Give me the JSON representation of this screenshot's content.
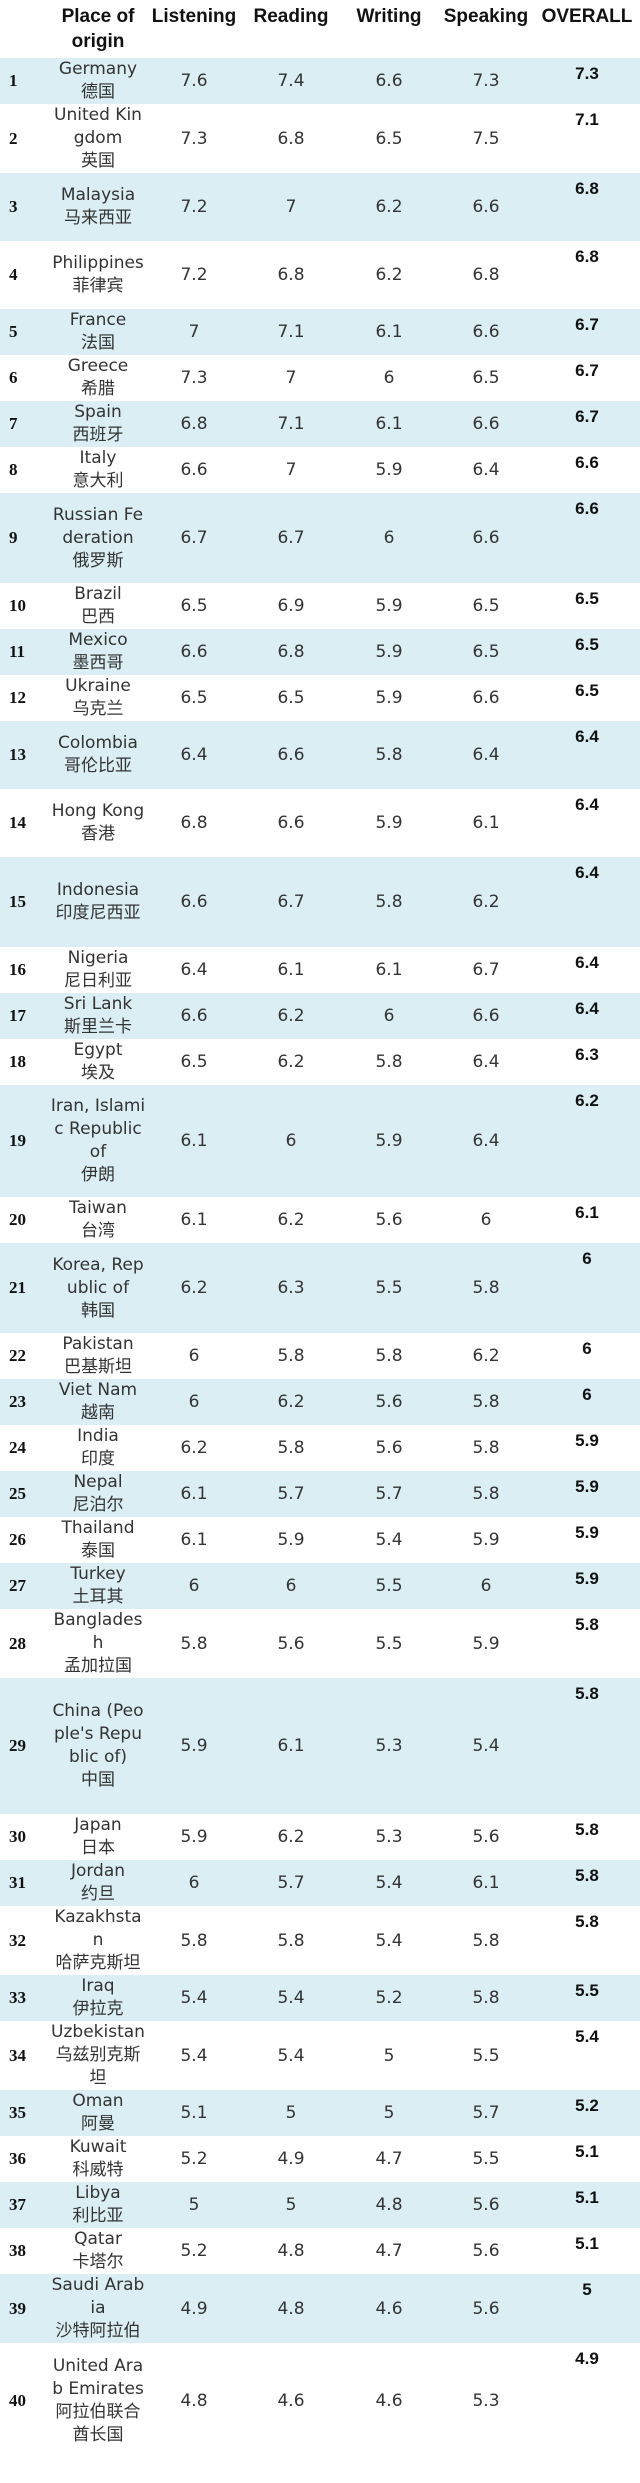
{
  "headers": [
    "",
    "Place of origin",
    "Listening",
    "Reading",
    "Writing",
    "Speaking",
    "OVERALL"
  ],
  "rows": [
    {
      "rank": "1",
      "en": "Germany",
      "cn": "德国",
      "l": "7.6",
      "r": "7.4",
      "w": "6.6",
      "s": "7.3",
      "o": "7.3"
    },
    {
      "rank": "2",
      "en": "United Kingdom",
      "cn": "英国",
      "l": "7.3",
      "r": "6.8",
      "w": "6.5",
      "s": "7.5",
      "o": "7.1"
    },
    {
      "rank": "3",
      "en": "Malaysia",
      "cn": "马来西亚",
      "l": "7.2",
      "r": "7",
      "w": "6.2",
      "s": "6.6",
      "o": "6.8"
    },
    {
      "rank": "4",
      "en": "Philippines",
      "cn": "菲律宾",
      "l": "7.2",
      "r": "6.8",
      "w": "6.2",
      "s": "6.8",
      "o": "6.8"
    },
    {
      "rank": "5",
      "en": "France",
      "cn": "法国",
      "l": "7",
      "r": "7.1",
      "w": "6.1",
      "s": "6.6",
      "o": "6.7"
    },
    {
      "rank": "6",
      "en": "Greece",
      "cn": "希腊",
      "l": "7.3",
      "r": "7",
      "w": "6",
      "s": "6.5",
      "o": "6.7"
    },
    {
      "rank": "7",
      "en": "Spain",
      "cn": "西班牙",
      "l": "6.8",
      "r": "7.1",
      "w": "6.1",
      "s": "6.6",
      "o": "6.7"
    },
    {
      "rank": "8",
      "en": "Italy",
      "cn": "意大利",
      "l": "6.6",
      "r": "7",
      "w": "5.9",
      "s": "6.4",
      "o": "6.6"
    },
    {
      "rank": "9",
      "en": "Russian Federation",
      "cn": "俄罗斯",
      "l": "6.7",
      "r": "6.7",
      "w": "6",
      "s": "6.6",
      "o": "6.6"
    },
    {
      "rank": "10",
      "en": "Brazil",
      "cn": "巴西",
      "l": "6.5",
      "r": "6.9",
      "w": "5.9",
      "s": "6.5",
      "o": "6.5"
    },
    {
      "rank": "11",
      "en": "Mexico",
      "cn": "墨西哥",
      "l": "6.6",
      "r": "6.8",
      "w": "5.9",
      "s": "6.5",
      "o": "6.5"
    },
    {
      "rank": "12",
      "en": "Ukraine",
      "cn": "乌克兰",
      "l": "6.5",
      "r": "6.5",
      "w": "5.9",
      "s": "6.6",
      "o": "6.5"
    },
    {
      "rank": "13",
      "en": "Colombia",
      "cn": "哥伦比亚",
      "l": "6.4",
      "r": "6.6",
      "w": "5.8",
      "s": "6.4",
      "o": "6.4"
    },
    {
      "rank": "14",
      "en": "Hong Kong",
      "cn": "香港",
      "l": "6.8",
      "r": "6.6",
      "w": "5.9",
      "s": "6.1",
      "o": "6.4"
    },
    {
      "rank": "15",
      "en": "Indonesia",
      "cn": "印度尼西亚",
      "l": "6.6",
      "r": "6.7",
      "w": "5.8",
      "s": "6.2",
      "o": "6.4"
    },
    {
      "rank": "16",
      "en": "Nigeria",
      "cn": "尼日利亚",
      "l": "6.4",
      "r": "6.1",
      "w": "6.1",
      "s": "6.7",
      "o": "6.4"
    },
    {
      "rank": "17",
      "en": "Sri Lank",
      "cn": "斯里兰卡",
      "l": "6.6",
      "r": "6.2",
      "w": "6",
      "s": "6.6",
      "o": "6.4"
    },
    {
      "rank": "18",
      "en": "Egypt",
      "cn": "埃及",
      "l": "6.5",
      "r": "6.2",
      "w": "5.8",
      "s": "6.4",
      "o": "6.3"
    },
    {
      "rank": "19",
      "en": "Iran, Islamic Republic of",
      "cn": "伊朗",
      "l": "6.1",
      "r": "6",
      "w": "5.9",
      "s": "6.4",
      "o": "6.2"
    },
    {
      "rank": "20",
      "en": "Taiwan",
      "cn": "台湾",
      "l": "6.1",
      "r": "6.2",
      "w": "5.6",
      "s": "6",
      "o": "6.1"
    },
    {
      "rank": "21",
      "en": "Korea, Republic of",
      "cn": "韩国",
      "l": "6.2",
      "r": "6.3",
      "w": "5.5",
      "s": "5.8",
      "o": "6"
    },
    {
      "rank": "22",
      "en": "Pakistan",
      "cn": "巴基斯坦",
      "l": "6",
      "r": "5.8",
      "w": "5.8",
      "s": "6.2",
      "o": "6"
    },
    {
      "rank": "23",
      "en": "Viet Nam",
      "cn": "越南",
      "l": "6",
      "r": "6.2",
      "w": "5.6",
      "s": "5.8",
      "o": "6"
    },
    {
      "rank": "24",
      "en": "India",
      "cn": "印度",
      "l": "6.2",
      "r": "5.8",
      "w": "5.6",
      "s": "5.8",
      "o": "5.9"
    },
    {
      "rank": "25",
      "en": "Nepal",
      "cn": "尼泊尔",
      "l": "6.1",
      "r": "5.7",
      "w": "5.7",
      "s": "5.8",
      "o": "5.9"
    },
    {
      "rank": "26",
      "en": "Thailand",
      "cn": "泰国",
      "l": "6.1",
      "r": "5.9",
      "w": "5.4",
      "s": "5.9",
      "o": "5.9"
    },
    {
      "rank": "27",
      "en": "Turkey",
      "cn": "土耳其",
      "l": "6",
      "r": "6",
      "w": "5.5",
      "s": "6",
      "o": "5.9"
    },
    {
      "rank": "28",
      "en": "Bangladesh",
      "cn": "孟加拉国",
      "l": "5.8",
      "r": "5.6",
      "w": "5.5",
      "s": "5.9",
      "o": "5.8"
    },
    {
      "rank": "29",
      "en": "China (People's Republic of)",
      "cn": "中国",
      "l": "5.9",
      "r": "6.1",
      "w": "5.3",
      "s": "5.4",
      "o": "5.8"
    },
    {
      "rank": "30",
      "en": "Japan",
      "cn": "日本",
      "l": "5.9",
      "r": "6.2",
      "w": "5.3",
      "s": "5.6",
      "o": "5.8"
    },
    {
      "rank": "31",
      "en": "Jordan",
      "cn": "约旦",
      "l": "6",
      "r": "5.7",
      "w": "5.4",
      "s": "6.1",
      "o": "5.8"
    },
    {
      "rank": "32",
      "en": "Kazakhstan",
      "cn": "哈萨克斯坦",
      "l": "5.8",
      "r": "5.8",
      "w": "5.4",
      "s": "5.8",
      "o": "5.8"
    },
    {
      "rank": "33",
      "en": "Iraq",
      "cn": "伊拉克",
      "l": "5.4",
      "r": "5.4",
      "w": "5.2",
      "s": "5.8",
      "o": "5.5"
    },
    {
      "rank": "34",
      "en": "Uzbekistan",
      "cn": "乌兹别克斯坦",
      "l": "5.4",
      "r": "5.4",
      "w": "5",
      "s": "5.5",
      "o": "5.4"
    },
    {
      "rank": "35",
      "en": "Oman",
      "cn": "阿曼",
      "l": "5.1",
      "r": "5",
      "w": "5",
      "s": "5.7",
      "o": "5.2"
    },
    {
      "rank": "36",
      "en": "Kuwait",
      "cn": "科威特",
      "l": "5.2",
      "r": "4.9",
      "w": "4.7",
      "s": "5.5",
      "o": "5.1"
    },
    {
      "rank": "37",
      "en": "Libya",
      "cn": "利比亚",
      "l": "5",
      "r": "5",
      "w": "4.8",
      "s": "5.6",
      "o": "5.1"
    },
    {
      "rank": "38",
      "en": "Qatar",
      "cn": "卡塔尔",
      "l": "5.2",
      "r": "4.8",
      "w": "4.7",
      "s": "5.6",
      "o": "5.1"
    },
    {
      "rank": "39",
      "en": "Saudi Arabia",
      "cn": "沙特阿拉伯",
      "l": "4.9",
      "r": "4.8",
      "w": "4.6",
      "s": "5.6",
      "o": "5"
    },
    {
      "rank": "40",
      "en": "United Arab Emirates",
      "cn": "阿拉伯联合酋长国",
      "l": "4.8",
      "r": "4.6",
      "w": "4.6",
      "s": "5.3",
      "o": "4.9"
    }
  ]
}
